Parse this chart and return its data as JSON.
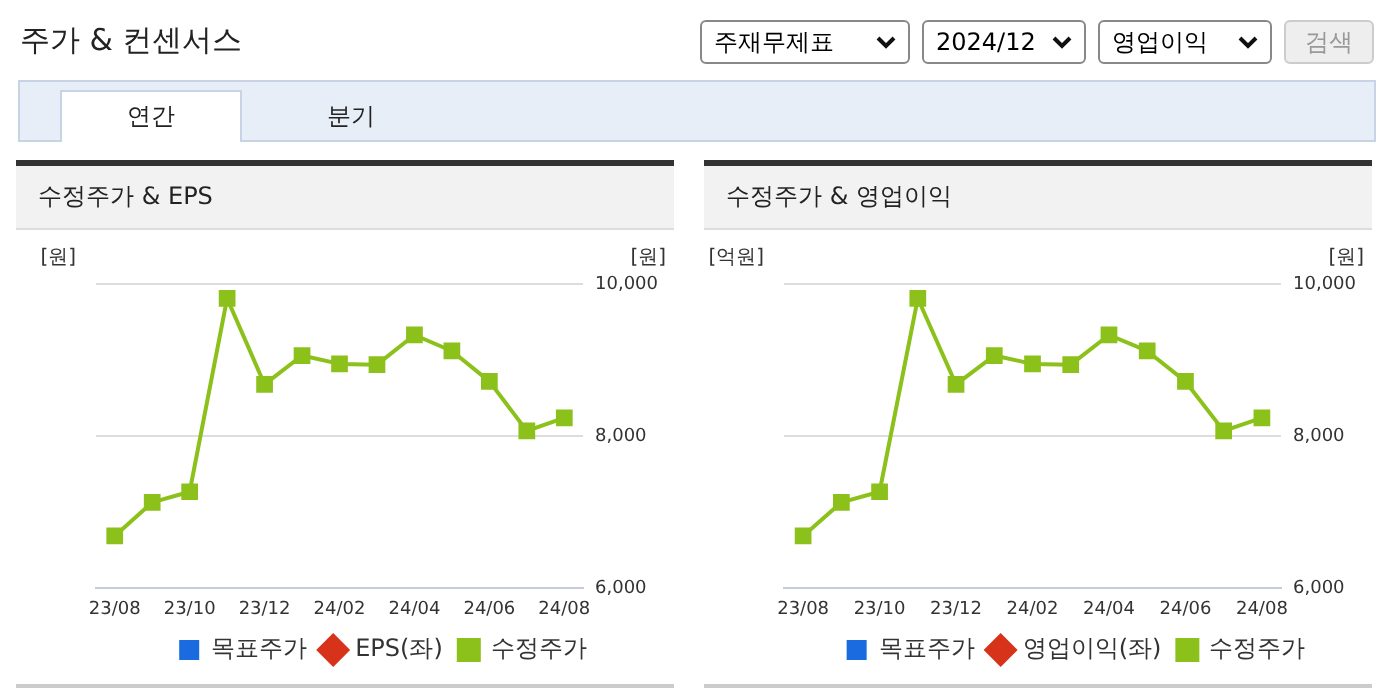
{
  "chart_data": [
    {
      "type": "other",
      "title": "주가 & 컨센서스",
      "annotations": [
        "주재무제표",
        "2024/12",
        "영업이익",
        "검색"
      ]
    },
    {
      "type": "other",
      "annotations": [
        "연간",
        "분기"
      ]
    },
    {
      "type": "line",
      "title": "수정주가 & EPS",
      "ylabel": "[원]",
      "y2label": "[원]",
      "categories": [
        "23/08",
        null,
        "23/10",
        null,
        "23/12",
        null,
        "24/02",
        null,
        "24/04",
        null,
        "24/06",
        null,
        "24/08"
      ],
      "series": [
        {
          "name": "목표주가",
          "type": "bar",
          "color": "#1a6ae0",
          "axis": "y",
          "values": [
            null,
            null,
            null,
            null,
            null,
            null,
            null,
            null,
            null,
            null,
            null,
            null,
            null
          ]
        },
        {
          "name": "EPS(좌)",
          "type": "line",
          "color": "#d7321a",
          "marker": "diamond",
          "axis": "y",
          "values": [
            null,
            null,
            null,
            null,
            null,
            null,
            null,
            null,
            null,
            null,
            null,
            null,
            null
          ]
        },
        {
          "name": "수정주가",
          "type": "line",
          "color": "#8cc11b",
          "marker": "square",
          "axis": "y2",
          "values": [
            6690,
            7130,
            7270,
            9810,
            8680,
            9060,
            8950,
            8940,
            9330,
            9120,
            8720,
            8070,
            8240
          ]
        }
      ],
      "y2lim": [
        6000,
        10000
      ],
      "y2ticks": [
        {
          "value": 6000,
          "label": "6,000"
        },
        {
          "value": 8000,
          "label": "8,000"
        },
        {
          "value": 10000,
          "label": "10,000"
        }
      ],
      "grid": "y",
      "legend": "bottom"
    },
    {
      "type": "line",
      "title": "수정주가 & 영업이익",
      "ylabel": "[억원]",
      "y2label": "[원]",
      "categories": [
        "23/08",
        null,
        "23/10",
        null,
        "23/12",
        null,
        "24/02",
        null,
        "24/04",
        null,
        "24/06",
        null,
        "24/08"
      ],
      "series": [
        {
          "name": "목표주가",
          "type": "bar",
          "color": "#1a6ae0",
          "axis": "y",
          "values": [
            null,
            null,
            null,
            null,
            null,
            null,
            null,
            null,
            null,
            null,
            null,
            null,
            null
          ]
        },
        {
          "name": "영업이익(좌)",
          "type": "line",
          "color": "#d7321a",
          "marker": "diamond",
          "axis": "y",
          "values": [
            null,
            null,
            null,
            null,
            null,
            null,
            null,
            null,
            null,
            null,
            null,
            null,
            null
          ]
        },
        {
          "name": "수정주가",
          "type": "line",
          "color": "#8cc11b",
          "marker": "square",
          "axis": "y2",
          "values": [
            6690,
            7130,
            7270,
            9810,
            8680,
            9060,
            8950,
            8940,
            9330,
            9120,
            8720,
            8070,
            8240
          ]
        }
      ],
      "y2lim": [
        6000,
        10000
      ],
      "y2ticks": [
        {
          "value": 6000,
          "label": "6,000"
        },
        {
          "value": 8000,
          "label": "8,000"
        },
        {
          "value": 10000,
          "label": "10,000"
        }
      ],
      "grid": "y",
      "legend": "bottom"
    }
  ]
}
